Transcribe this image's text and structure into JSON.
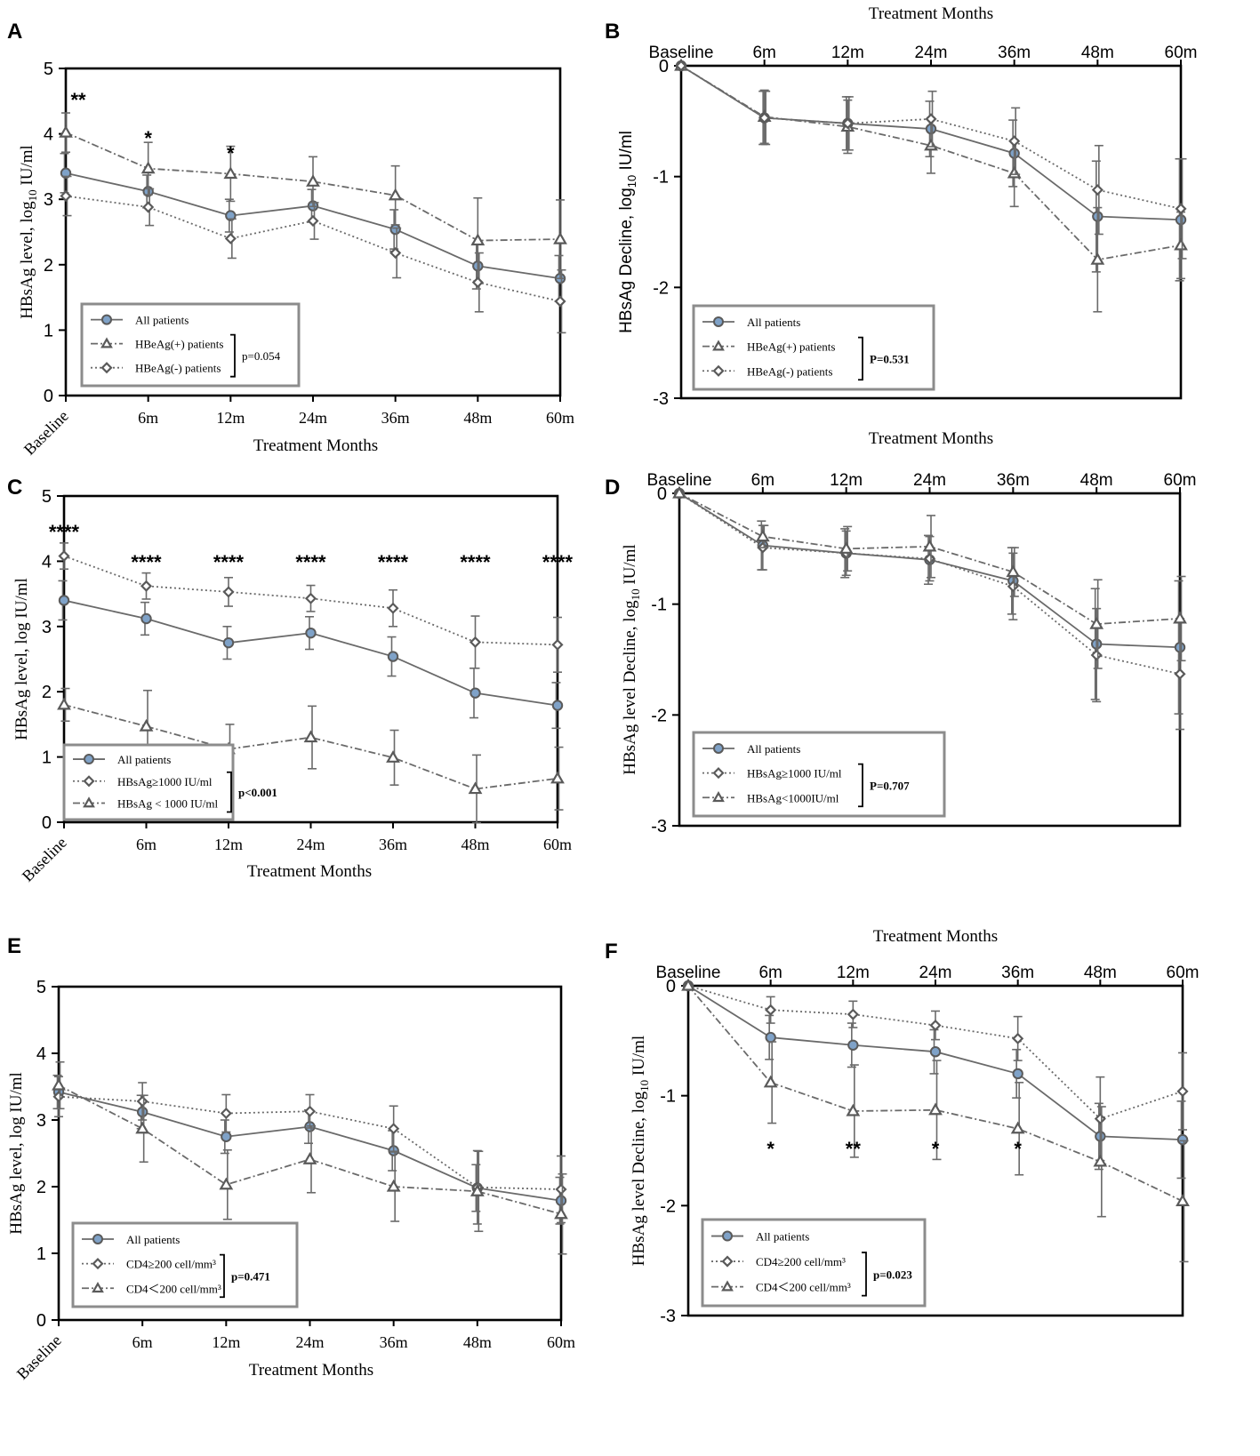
{
  "colors": {
    "line": "#6a6a6a",
    "marker_fill": "#7fa2c8",
    "marker_stroke": "#5a5a5a",
    "open_marker_fill": "#ffffff",
    "legend_border": "#8c8c8c",
    "axis": "#000000"
  },
  "chart_data": [
    {
      "panel": "A",
      "type": "line",
      "xaxis_position": "bottom",
      "xlabel": "Treatment Months",
      "ylabel_main": "HBsAg level, log",
      "ylabel_sub": "10",
      "ylabel_rest": " IU/ml",
      "categories": [
        "Baseline",
        "6m",
        "12m",
        "24m",
        "36m",
        "48m",
        "60m"
      ],
      "ylim": [
        0,
        5
      ],
      "yticks": [
        "0",
        "1",
        "2",
        "3",
        "4",
        "5"
      ],
      "series": [
        {
          "name": "All patients",
          "marker": "circle",
          "dash": "solid",
          "values": [
            3.4,
            3.12,
            2.75,
            2.9,
            2.54,
            1.98,
            1.79
          ],
          "err": [
            0.3,
            0.25,
            0.25,
            0.25,
            0.3,
            0.35,
            0.35
          ]
        },
        {
          "name": "HBeAg(+)  patients",
          "marker": "triangle",
          "dash": "dashdot",
          "values": [
            4.02,
            3.47,
            3.39,
            3.27,
            3.06,
            2.37,
            2.39
          ],
          "err": [
            0.3,
            0.4,
            0.42,
            0.38,
            0.45,
            0.65,
            0.6
          ]
        },
        {
          "name": "HBeAg(-)  patients",
          "marker": "diamond",
          "dash": "dot",
          "values": [
            3.05,
            2.88,
            2.4,
            2.67,
            2.18,
            1.73,
            1.44
          ],
          "err": [
            0.3,
            0.28,
            0.3,
            0.28,
            0.38,
            0.45,
            0.48
          ]
        }
      ],
      "annotations": [
        {
          "x": "Baseline",
          "text": "**"
        },
        {
          "x": "6m",
          "text": "*"
        },
        {
          "x": "12m",
          "text": "*"
        }
      ],
      "pvalue": "p=0.054",
      "pvalue_bold": false
    },
    {
      "panel": "B",
      "type": "line",
      "xaxis_position": "top",
      "xlabel": "Treatment Months",
      "ylabel_main": "HBsAg Decline, log",
      "ylabel_sub": "10",
      "ylabel_rest": " IU/ml",
      "categories": [
        "Baseline",
        "6m",
        "12m",
        "24m",
        "36m",
        "48m",
        "60m"
      ],
      "ylim": [
        -3,
        0
      ],
      "yticks": [
        "0",
        "-1",
        "-2",
        "-3"
      ],
      "series": [
        {
          "name": "All patients",
          "marker": "circle",
          "dash": "solid",
          "values": [
            0,
            -0.47,
            -0.52,
            -0.57,
            -0.79,
            -1.36,
            -1.39
          ],
          "err": [
            0,
            0.24,
            0.24,
            0.25,
            0.3,
            0.5,
            0.55
          ]
        },
        {
          "name": "HBeAg(+)  patients",
          "marker": "triangle",
          "dash": "dashdot",
          "values": [
            0,
            -0.46,
            -0.55,
            -0.72,
            -0.97,
            -1.75,
            -1.62
          ],
          "err": [
            0,
            0.24,
            0.24,
            0.25,
            0.3,
            0.47,
            0.3
          ]
        },
        {
          "name": "HBeAg(-)  patients",
          "marker": "diamond",
          "dash": "dot",
          "values": [
            0,
            -0.47,
            -0.52,
            -0.48,
            -0.68,
            -1.12,
            -1.29
          ],
          "err": [
            0,
            0.24,
            0.24,
            0.25,
            0.3,
            0.4,
            0.45
          ]
        }
      ],
      "annotations": [],
      "pvalue": "P=0.531",
      "pvalue_bold": true
    },
    {
      "panel": "C",
      "type": "line",
      "xaxis_position": "bottom",
      "xlabel": "Treatment Months",
      "ylabel_main": "HBsAg level, log IU/ml",
      "ylabel_sub": "",
      "ylabel_rest": "",
      "categories": [
        "Baseline",
        "6m",
        "12m",
        "24m",
        "36m",
        "48m",
        "60m"
      ],
      "ylim": [
        0,
        5
      ],
      "yticks": [
        "0",
        "1",
        "2",
        "3",
        "4",
        "5"
      ],
      "series": [
        {
          "name": "All patients",
          "marker": "circle",
          "dash": "solid",
          "values": [
            3.4,
            3.12,
            2.75,
            2.9,
            2.54,
            1.98,
            1.79
          ],
          "err": [
            0.3,
            0.25,
            0.25,
            0.25,
            0.3,
            0.38,
            0.35
          ]
        },
        {
          "name": "HBsAg≥1000 IU/ml",
          "marker": "diamond",
          "dash": "dot",
          "values": [
            4.08,
            3.62,
            3.53,
            3.43,
            3.28,
            2.76,
            2.72
          ],
          "err": [
            0.2,
            0.2,
            0.22,
            0.2,
            0.28,
            0.4,
            0.42
          ]
        },
        {
          "name": "HBsAg < 1000 IU/ml",
          "marker": "triangle",
          "dash": "dashdot",
          "values": [
            1.8,
            1.47,
            1.12,
            1.3,
            0.99,
            0.51,
            0.67
          ],
          "err": [
            0.25,
            0.55,
            0.38,
            0.48,
            0.42,
            0.52,
            0.48
          ]
        }
      ],
      "annotations": [
        {
          "x": "Baseline",
          "text": "****"
        },
        {
          "x": "6m",
          "text": "****"
        },
        {
          "x": "12m",
          "text": "****"
        },
        {
          "x": "24m",
          "text": "****"
        },
        {
          "x": "36m",
          "text": "****"
        },
        {
          "x": "48m",
          "text": "****"
        },
        {
          "x": "60m",
          "text": "****"
        }
      ],
      "pvalue": "p<0.001",
      "pvalue_bold": true
    },
    {
      "panel": "D",
      "type": "line",
      "xaxis_position": "top",
      "xlabel": "Treatment Months",
      "ylabel_main": "HBsAg level Decline, log",
      "ylabel_sub": "10",
      "ylabel_rest": " IU/ml",
      "categories": [
        "Baseline",
        "6m",
        "12m",
        "24m",
        "36m",
        "48m",
        "60m"
      ],
      "ylim": [
        -3,
        0
      ],
      "yticks": [
        "0",
        "-1",
        "-2",
        "-3"
      ],
      "series": [
        {
          "name": "All patients",
          "marker": "circle",
          "dash": "solid",
          "values": [
            0,
            -0.47,
            -0.54,
            -0.6,
            -0.79,
            -1.36,
            -1.39
          ],
          "err": [
            0,
            0.22,
            0.22,
            0.22,
            0.3,
            0.5,
            0.6
          ]
        },
        {
          "name": "HBsAg≥1000 IU/ml",
          "marker": "diamond",
          "dash": "dot",
          "values": [
            0,
            -0.49,
            -0.54,
            -0.59,
            -0.84,
            -1.46,
            -1.63
          ],
          "err": [
            0,
            0.2,
            0.2,
            0.2,
            0.3,
            0.42,
            0.5
          ]
        },
        {
          "name": "HBsAg<1000IU/ml",
          "marker": "triangle",
          "dash": "dashdot",
          "values": [
            0,
            -0.39,
            -0.5,
            -0.48,
            -0.71,
            -1.18,
            -1.13
          ],
          "err": [
            0,
            0.1,
            0.2,
            0.28,
            0.22,
            0.4,
            0.38
          ]
        }
      ],
      "annotations": [],
      "pvalue": "P=0.707",
      "pvalue_bold": true
    },
    {
      "panel": "E",
      "type": "line",
      "xaxis_position": "bottom",
      "xlabel": "Treatment Months",
      "ylabel_main": "HBsAg level, log IU/ml",
      "ylabel_sub": "",
      "ylabel_rest": "",
      "categories": [
        "Baseline",
        "6m",
        "12m",
        "24m",
        "36m",
        "48m",
        "60m"
      ],
      "ylim": [
        0,
        5
      ],
      "yticks": [
        "0",
        "1",
        "2",
        "3",
        "4",
        "5"
      ],
      "series": [
        {
          "name": "All patients",
          "marker": "circle",
          "dash": "solid",
          "values": [
            3.42,
            3.12,
            2.75,
            2.9,
            2.54,
            1.98,
            1.79
          ],
          "err": [
            0.25,
            0.25,
            0.25,
            0.25,
            0.3,
            0.35,
            0.35
          ]
        },
        {
          "name": "CD4≥200 cell/mm³",
          "marker": "diamond",
          "dash": "dot",
          "values": [
            3.35,
            3.28,
            3.1,
            3.13,
            2.87,
            1.99,
            1.96
          ],
          "err": [
            0.3,
            0.28,
            0.28,
            0.25,
            0.34,
            0.55,
            0.5
          ]
        },
        {
          "name": "CD4＜200 cell/mm³",
          "marker": "triangle",
          "dash": "dashdot",
          "values": [
            3.52,
            2.87,
            2.03,
            2.41,
            2.0,
            1.93,
            1.59
          ],
          "err": [
            0.35,
            0.5,
            0.52,
            0.5,
            0.52,
            0.6,
            0.6
          ]
        }
      ],
      "annotations": [],
      "pvalue": "p=0.471",
      "pvalue_bold": true
    },
    {
      "panel": "F",
      "type": "line",
      "xaxis_position": "top",
      "xlabel": "Treatment Months",
      "ylabel_main": "HBsAg level Decline, log",
      "ylabel_sub": "10",
      "ylabel_rest": " IU/ml",
      "categories": [
        "Baseline",
        "6m",
        "12m",
        "24m",
        "36m",
        "48m",
        "60m"
      ],
      "ylim": [
        -3,
        0
      ],
      "yticks": [
        "0",
        "-1",
        "-2",
        "-3"
      ],
      "series": [
        {
          "name": "All patients",
          "marker": "circle",
          "dash": "solid",
          "values": [
            0,
            -0.47,
            -0.54,
            -0.6,
            -0.8,
            -1.37,
            -1.4
          ],
          "err": [
            0,
            0.2,
            0.2,
            0.2,
            0.22,
            0.3,
            0.35
          ]
        },
        {
          "name": "CD4≥200 cell/mm³",
          "marker": "diamond",
          "dash": "dot",
          "values": [
            0,
            -0.22,
            -0.26,
            -0.36,
            -0.48,
            -1.21,
            -0.96
          ],
          "err": [
            0,
            0.12,
            0.12,
            0.13,
            0.2,
            0.38,
            0.35
          ]
        },
        {
          "name": "CD4＜200 cell/mm³",
          "marker": "triangle",
          "dash": "dashdot",
          "values": [
            0,
            -0.88,
            -1.14,
            -1.13,
            -1.3,
            -1.6,
            -1.96
          ],
          "err": [
            0,
            0.37,
            0.42,
            0.45,
            0.42,
            0.5,
            0.55
          ]
        }
      ],
      "annotations": [
        {
          "x": "6m",
          "text": "*"
        },
        {
          "x": "12m",
          "text": "**"
        },
        {
          "x": "24m",
          "text": "*"
        },
        {
          "x": "36m",
          "text": "*"
        }
      ],
      "pvalue": "p=0.023",
      "pvalue_bold": true
    }
  ]
}
